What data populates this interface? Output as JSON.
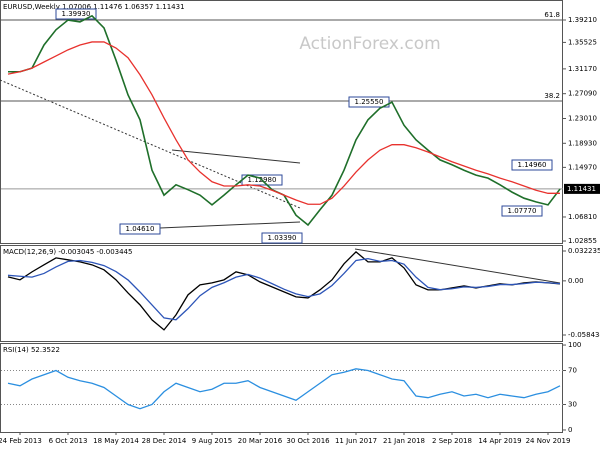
{
  "title": "EURUSD,Weekly  1.07006 1.11476 1.06357 1.11431",
  "watermark": "ActionForex.com",
  "chart_data": [
    {
      "type": "line",
      "ylim": [
        1.0253,
        1.425
      ],
      "yticks": [
        {
          "value": 1.3921,
          "label": "1.39210"
        },
        1.35525,
        {
          "value": 1.3117,
          "label": "1.31170"
        },
        {
          "value": 1.2709,
          "label": "1.27090"
        },
        {
          "value": 1.2301,
          "label": "1.23010"
        },
        {
          "value": 1.1893,
          "label": "1.18930"
        },
        {
          "value": 1.1497,
          "label": "1.14970"
        },
        {
          "value": 1.0681,
          "label": "1.06810"
        },
        1.02855
      ],
      "series": [
        {
          "color": "#1f6f2a",
          "values": [
            1.307,
            1.307,
            1.313,
            1.351,
            1.376,
            1.392,
            1.389,
            1.399,
            1.379,
            1.326,
            1.269,
            1.228,
            1.145,
            1.104,
            1.121,
            1.113,
            1.104,
            1.088,
            1.104,
            1.121,
            1.137,
            1.132,
            1.113,
            1.104,
            1.071,
            1.055,
            1.08,
            1.104,
            1.145,
            1.195,
            1.228,
            1.247,
            1.257,
            1.219,
            1.195,
            1.178,
            1.162,
            1.154,
            1.145,
            1.137,
            1.132,
            1.121,
            1.109,
            1.099,
            1.093,
            1.088,
            1.114
          ]
        },
        {
          "color": "#e8322e",
          "values": [
            1.303,
            1.307,
            1.313,
            1.323,
            1.333,
            1.343,
            1.351,
            1.356,
            1.356,
            1.346,
            1.33,
            1.302,
            1.269,
            1.231,
            1.195,
            1.162,
            1.142,
            1.126,
            1.119,
            1.119,
            1.121,
            1.119,
            1.112,
            1.104,
            1.096,
            1.089,
            1.089,
            1.099,
            1.119,
            1.142,
            1.162,
            1.178,
            1.187,
            1.187,
            1.182,
            1.175,
            1.167,
            1.159,
            1.152,
            1.145,
            1.139,
            1.132,
            1.126,
            1.119,
            1.112,
            1.107,
            1.107
          ]
        }
      ],
      "levels": [
        {
          "label": "61.8",
          "value": 1.3921
        },
        {
          "label": "38.2",
          "value": 1.2589
        }
      ],
      "last_price": 1.11431,
      "annotations": [
        "1.39930",
        "1.12980",
        "1.04610",
        "1.03390",
        "1.25550",
        "1.14960",
        "1.07770"
      ]
    },
    {
      "type": "line",
      "label": "MACD(12,26,9) -0.003045 -0.003445",
      "ylim": [
        -0.0649,
        0.0387
      ],
      "yticks": [
        0.032235,
        {
          "value": 0,
          "label": "0.00"
        },
        -0.058434
      ],
      "series": [
        {
          "color": "#000000",
          "values": [
            0.0043,
            0.0011,
            0.0097,
            0.0173,
            0.0248,
            0.0227,
            0.0205,
            0.0173,
            0.0119,
            0.0011,
            -0.013,
            -0.0259,
            -0.0421,
            -0.0529,
            -0.0367,
            -0.0151,
            -0.0043,
            -0.0022,
            0.0011,
            0.0097,
            0.0065,
            -0.0011,
            -0.0065,
            -0.0119,
            -0.0173,
            -0.0184,
            -0.0097,
            0.0011,
            0.0184,
            0.0313,
            0.0205,
            0.0205,
            0.0248,
            0.014,
            -0.0043,
            -0.0097,
            -0.0097,
            -0.0076,
            -0.0054,
            -0.0076,
            -0.0054,
            -0.0032,
            -0.0043,
            -0.0022,
            -0.0011,
            -0.0022,
            -0.0032
          ]
        },
        {
          "color": "#2d55b8",
          "values": [
            0.006,
            0.005,
            0.004,
            0.008,
            0.015,
            0.021,
            0.022,
            0.02,
            0.0165,
            0.01,
            0.001,
            -0.012,
            -0.026,
            -0.04,
            -0.042,
            -0.03,
            -0.016,
            -0.007,
            -0.002,
            0.004,
            0.007,
            0.003,
            -0.003,
            -0.009,
            -0.014,
            -0.017,
            -0.014,
            -0.005,
            0.008,
            0.022,
            0.024,
            0.021,
            0.022,
            0.018,
            0.004,
            -0.007,
            -0.0095,
            -0.0085,
            -0.0065,
            -0.007,
            -0.006,
            -0.004,
            -0.004,
            -0.003,
            -0.0015,
            -0.002,
            -0.003
          ]
        }
      ]
    },
    {
      "type": "line",
      "label": "RSI(14) 52.3522",
      "ylim": [
        -2.4,
        102.4
      ],
      "yticks": [
        100,
        70,
        30,
        0
      ],
      "levels": [
        70,
        30
      ],
      "categories": [
        null,
        "24 Feb 2013",
        null,
        null,
        null,
        "6 Oct 2013",
        null,
        null,
        null,
        "18 May 2014",
        null,
        null,
        null,
        "28 Dec 2014",
        null,
        null,
        null,
        "9 Aug 2015",
        null,
        null,
        null,
        "20 Mar 2016",
        null,
        null,
        null,
        "30 Oct 2016",
        null,
        null,
        null,
        "11 Jun 2017",
        null,
        null,
        null,
        "21 Jan 2018",
        null,
        null,
        null,
        "2 Sep 2018",
        null,
        null,
        null,
        "14 Apr 2019",
        null,
        null,
        null,
        "24 Nov 2019",
        null
      ],
      "series": [
        {
          "color": "#2b8fe0",
          "values": [
            55,
            52,
            60,
            65,
            70,
            62,
            58,
            55,
            50,
            40,
            30,
            25,
            30,
            45,
            55,
            50,
            45,
            48,
            55,
            55,
            58,
            50,
            45,
            40,
            35,
            45,
            55,
            65,
            68,
            72,
            70,
            65,
            60,
            58,
            40,
            38,
            42,
            45,
            40,
            42,
            38,
            42,
            40,
            38,
            42,
            45,
            52
          ]
        }
      ]
    }
  ]
}
